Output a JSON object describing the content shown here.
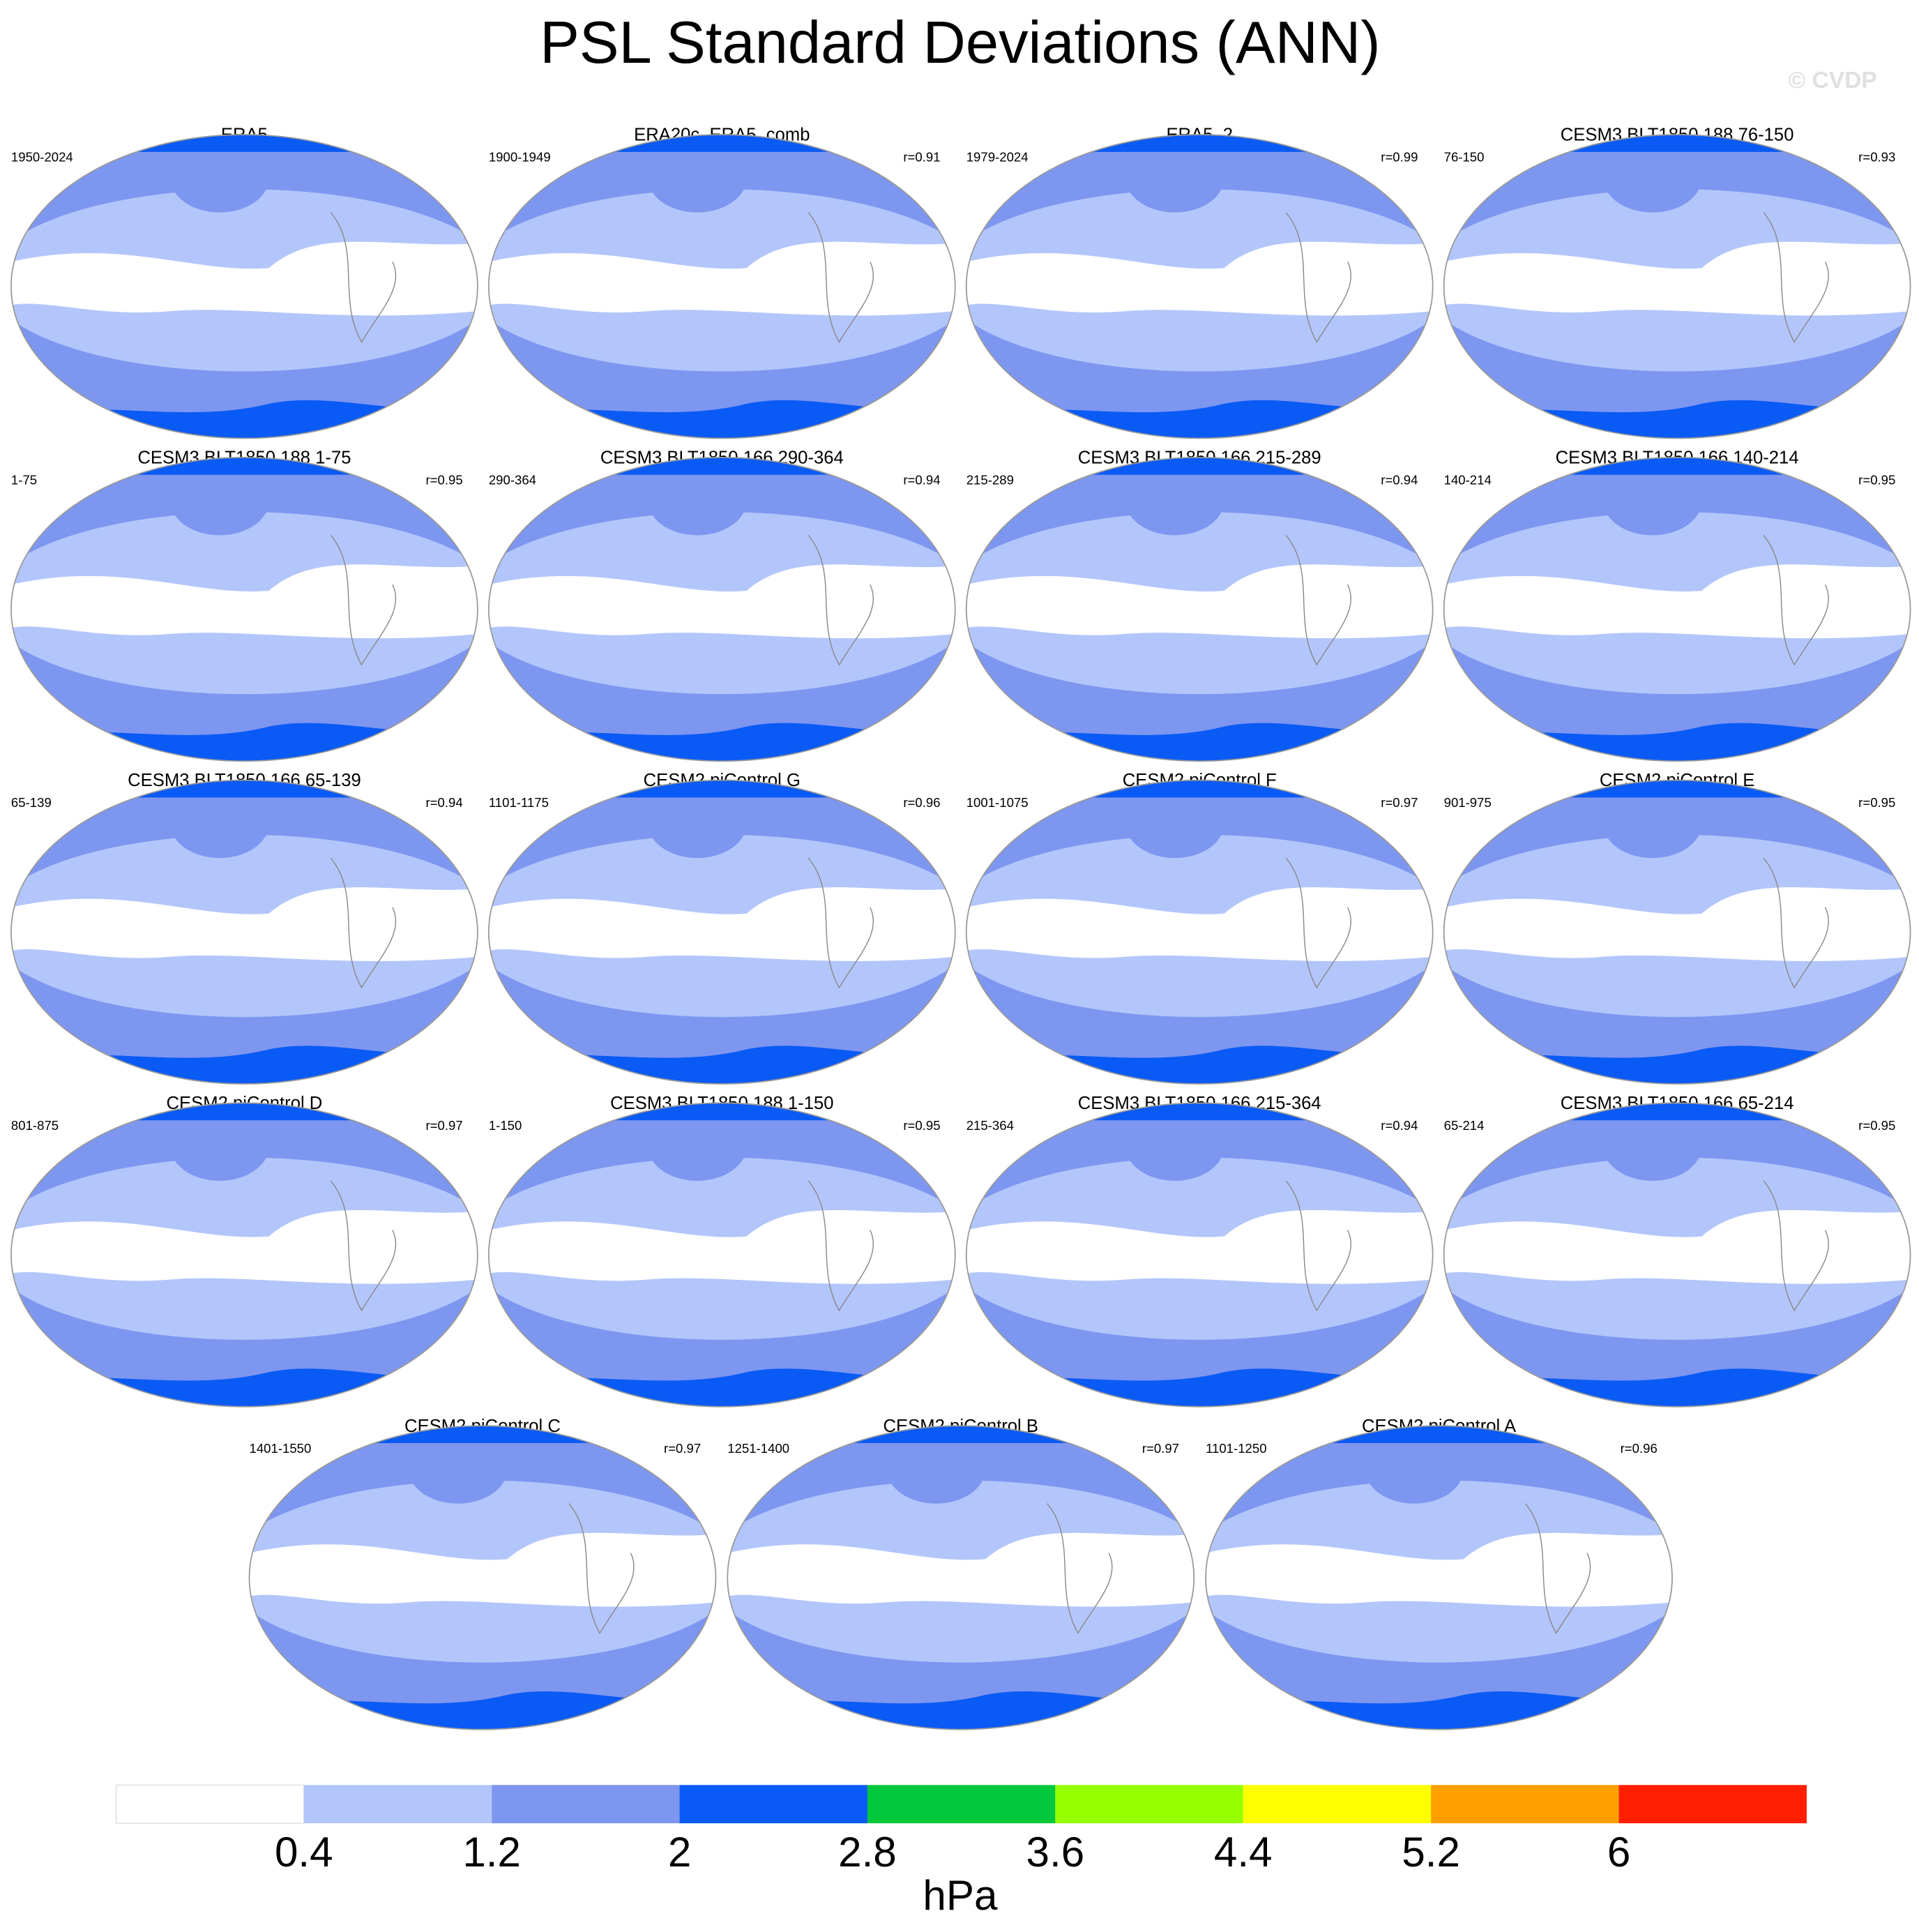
{
  "title": "PSL Standard Deviations (ANN)",
  "watermark": "© CVDP",
  "panels": [
    {
      "title": "ERA5",
      "period": "1950-2024"
    },
    {
      "title": "ERA20c_ERA5_comb",
      "period": "1900-1949",
      "r": "r=0.91"
    },
    {
      "title": "ERA5_2",
      "period": "1979-2024",
      "r": "r=0.99"
    },
    {
      "title": "CESM3 BLT1850 188 76-150",
      "period": "76-150",
      "r": "r=0.93"
    },
    {
      "title": "CESM3 BLT1850 188 1-75",
      "period": "1-75",
      "r": "r=0.95"
    },
    {
      "title": "CESM3 BLT1850 166 290-364",
      "period": "290-364",
      "r": "r=0.94"
    },
    {
      "title": "CESM3 BLT1850 166 215-289",
      "period": "215-289",
      "r": "r=0.94"
    },
    {
      "title": "CESM3 BLT1850 166 140-214",
      "period": "140-214",
      "r": "r=0.95"
    },
    {
      "title": "CESM3 BLT1850 166 65-139",
      "period": "65-139",
      "r": "r=0.94"
    },
    {
      "title": "CESM2 piControl G",
      "period": "1101-1175",
      "r": "r=0.96"
    },
    {
      "title": "CESM2 piControl F",
      "period": "1001-1075",
      "r": "r=0.97"
    },
    {
      "title": "CESM2 piControl E",
      "period": "901-975",
      "r": "r=0.95"
    },
    {
      "title": "CESM2 piControl D",
      "period": "801-875",
      "r": "r=0.97"
    },
    {
      "title": "CESM3 BLT1850 188 1-150",
      "period": "1-150",
      "r": "r=0.95"
    },
    {
      "title": "CESM3 BLT1850 166 215-364",
      "period": "215-364",
      "r": "r=0.94"
    },
    {
      "title": "CESM3 BLT1850 166 65-214",
      "period": "65-214",
      "r": "r=0.95"
    },
    {
      "title": "CESM2 piControl C",
      "period": "1401-1550",
      "r": "r=0.97"
    },
    {
      "title": "CESM2 piControl B",
      "period": "1251-1400",
      "r": "r=0.97"
    },
    {
      "title": "CESM2 piControl A",
      "period": "1101-1250",
      "r": "r=0.96"
    }
  ],
  "colorbar": {
    "ticks": [
      0.4,
      1.2,
      2,
      2.8,
      3.6,
      4.4,
      5.2,
      6
    ],
    "colors": [
      "#ffffff",
      "#b3c6fb",
      "#7d96f0",
      "#0a5af5",
      "#00c83c",
      "#96ff00",
      "#ffff00",
      "#ffa000",
      "#ff1e00"
    ],
    "unit": "hPa"
  }
}
